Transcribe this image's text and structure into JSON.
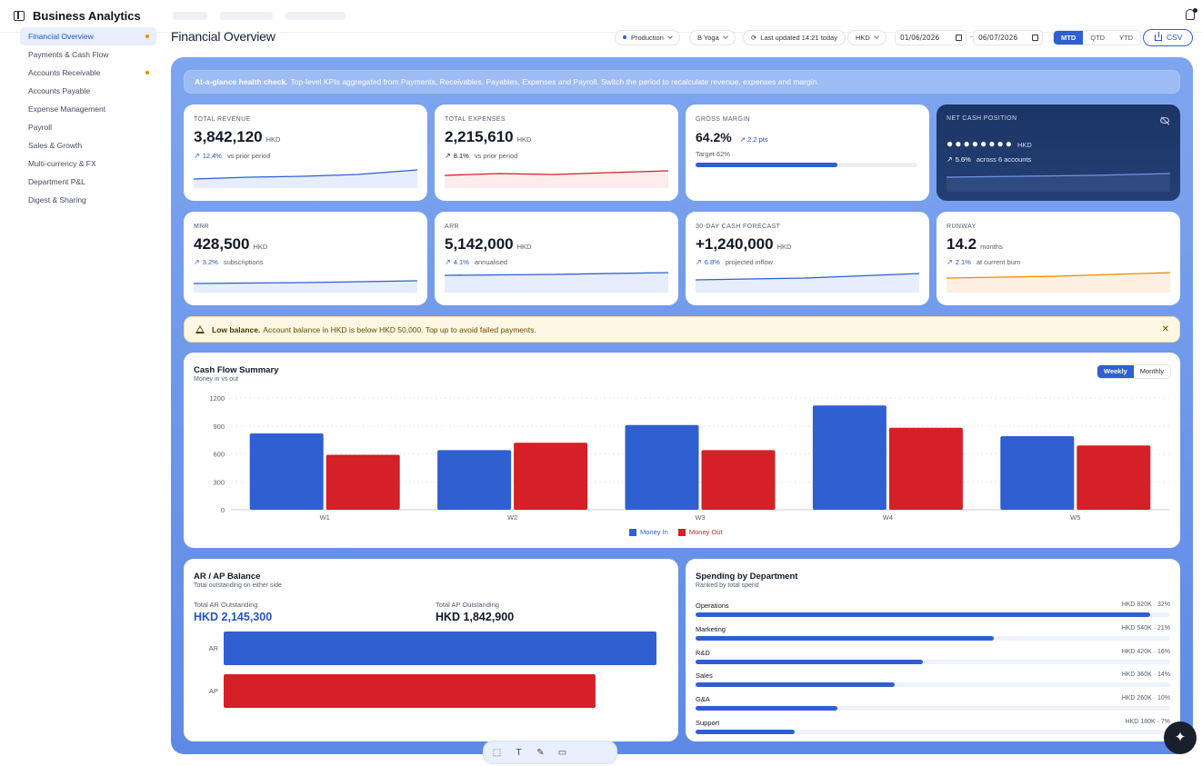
{
  "app": {
    "title": "Business Analytics"
  },
  "sidebar": {
    "items": [
      {
        "label": "Financial Overview",
        "active": true,
        "dot": true
      },
      {
        "label": "Payments & Cash Flow",
        "active": false,
        "dot": false
      },
      {
        "label": "Accounts Receivable",
        "active": false,
        "dot": true
      },
      {
        "label": "Accounts Payable",
        "active": false,
        "dot": false
      },
      {
        "label": "Expense Management",
        "active": false,
        "dot": false
      },
      {
        "label": "Payroll",
        "active": false,
        "dot": false
      },
      {
        "label": "Sales & Growth",
        "active": false,
        "dot": false
      },
      {
        "label": "Multi-currency & FX",
        "active": false,
        "dot": false
      },
      {
        "label": "Department P&L",
        "active": false,
        "dot": false
      },
      {
        "label": "Digest & Sharing",
        "active": false,
        "dot": false
      }
    ]
  },
  "header": {
    "page_title": "Financial Overview",
    "environment": "Production",
    "entity": "B Yoga",
    "last_updated": "Last updated 14:21 today",
    "currency": "HKD",
    "date_from": "01/06/2026",
    "date_to": "06/07/2026",
    "periods": [
      {
        "label": "MTD",
        "selected": true
      },
      {
        "label": "QTD",
        "selected": false
      },
      {
        "label": "YTD",
        "selected": false
      }
    ],
    "export_label": "CSV"
  },
  "banner": {
    "strong": "At-a-glance health check.",
    "text": "Top-level KPIs aggregated from Payments, Receivables, Payables, Expenses and Payroll. Switch the period to recalculate revenue, expenses and margin."
  },
  "kpis": {
    "total_revenue": {
      "label": "TOTAL REVENUE",
      "value": "3,842,120",
      "unit": "HKD",
      "delta": "12.4%",
      "note": "vs prior period"
    },
    "total_expenses": {
      "label": "TOTAL EXPENSES",
      "value": "2,215,610",
      "unit": "HKD",
      "delta": "8.1%",
      "note": "vs prior period"
    },
    "gross_margin": {
      "label": "GROSS MARGIN",
      "value": "64.2%",
      "delta": "2.2 pts",
      "target": "Target 62%",
      "progress": 0.64
    },
    "net_cash": {
      "label": "NET CASH POSITION",
      "value": "●●●●●●●●",
      "unit": "HKD",
      "delta": "5.6%",
      "note": "across 6 accounts"
    },
    "mrr": {
      "label": "MRR",
      "value": "428,500",
      "unit": "HKD",
      "delta": "3.2%",
      "note": "subscriptions"
    },
    "arr": {
      "label": "ARR",
      "value": "5,142,000",
      "unit": "HKD",
      "delta": "4.1%",
      "note": "annualised"
    },
    "forecast": {
      "label": "30-DAY CASH FORECAST",
      "value": "+1,240,000",
      "unit": "HKD",
      "delta": "6.8%",
      "note": "projected inflow"
    },
    "runway": {
      "label": "RUNWAY",
      "value": "14.2",
      "unit": "months",
      "delta": "2.1%",
      "note": "at current burn"
    }
  },
  "alert": {
    "strong": "Low balance.",
    "text": "Account balance in HKD is below HKD 50,000. Top up to avoid failed payments."
  },
  "cashflow": {
    "title": "Cash Flow Summary",
    "subtitle": "Money in vs out",
    "toggle": [
      {
        "label": "Weekly",
        "selected": true
      },
      {
        "label": "Monthly",
        "selected": false
      }
    ]
  },
  "arap": {
    "title": "AR / AP Balance",
    "subtitle": "Total outstanding on either side",
    "ar_label": "Total AR Outstanding",
    "ar_value": "HKD 2,145,300",
    "ap_label": "Total AP Outstanding",
    "ap_value": "HKD 1,842,900",
    "bars": [
      {
        "name": "AR",
        "value": 2145300
      },
      {
        "name": "AP",
        "value": 1842900
      }
    ]
  },
  "spending": {
    "title": "Spending by Department",
    "subtitle": "Ranked by total spend",
    "rows": [
      {
        "name": "Operations",
        "value": "HKD 820K · 32%",
        "fraction": 0.32
      },
      {
        "name": "Marketing",
        "value": "HKD 540K · 21%",
        "fraction": 0.21
      },
      {
        "name": "R&D",
        "value": "HKD 420K · 16%",
        "fraction": 0.16
      },
      {
        "name": "Sales",
        "value": "HKD 360K · 14%",
        "fraction": 0.14
      },
      {
        "name": "G&A",
        "value": "HKD 260K · 10%",
        "fraction": 0.1
      },
      {
        "name": "Support",
        "value": "HKD 180K · 7%",
        "fraction": 0.07
      }
    ]
  },
  "colors": {
    "money_in": "#2f5fd0",
    "money_out": "#d42026",
    "accent": "#2453c9"
  },
  "icons": {
    "sidebar_toggle": "sidebar-panel-icon",
    "bell": "bell-icon",
    "float_tools": [
      "select-icon",
      "text-icon",
      "pen-icon",
      "comment-icon"
    ],
    "fab": "sparkle-icon"
  },
  "chart_data": {
    "type": "bar",
    "categories": [
      "W1",
      "W2",
      "W3",
      "W4",
      "W5"
    ],
    "series": [
      {
        "name": "Money In",
        "values": [
          820,
          640,
          910,
          1120,
          790
        ]
      },
      {
        "name": "Money Out",
        "values": [
          590,
          720,
          640,
          880,
          690
        ]
      }
    ],
    "yticks": [
      0,
      300,
      600,
      900,
      1200
    ],
    "ylim": [
      0,
      1200
    ],
    "legend": "bottom",
    "grid": true
  }
}
